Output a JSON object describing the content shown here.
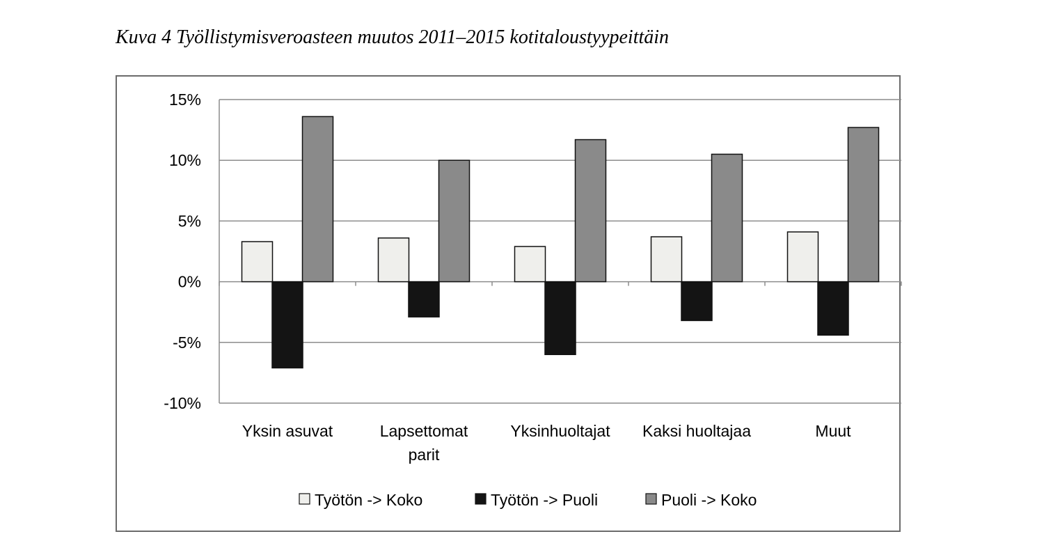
{
  "caption": "Kuva 4 Työllistymisveroasteen muutos 2011–2015 kotitaloustyypeittäin",
  "chart_data": {
    "type": "bar",
    "title": "",
    "xlabel": "",
    "ylabel": "",
    "ylim": [
      -10,
      15
    ],
    "yticks": [
      15,
      10,
      5,
      0,
      -5,
      -10
    ],
    "ytick_labels": [
      "15%",
      "10%",
      "5%",
      "0%",
      "-5%",
      "-10%"
    ],
    "grid": true,
    "legend_position": "bottom",
    "categories": [
      [
        "Yksin asuvat"
      ],
      [
        "Lapsettomat",
        "parit"
      ],
      [
        "Yksinhuoltajat"
      ],
      [
        "Kaksi huoltajaa"
      ],
      [
        "Muut"
      ]
    ],
    "series": [
      {
        "name": "Työtön -> Koko",
        "color": "#efefec",
        "values": [
          3.3,
          3.6,
          2.9,
          3.7,
          4.1
        ]
      },
      {
        "name": "Työtön -> Puoli",
        "color": "#141414",
        "values": [
          -7.1,
          -2.9,
          -6.0,
          -3.2,
          -4.4
        ]
      },
      {
        "name": "Puoli -> Koko",
        "color": "#8a8a8a",
        "values": [
          13.6,
          10.0,
          11.7,
          10.5,
          12.7
        ]
      }
    ]
  }
}
